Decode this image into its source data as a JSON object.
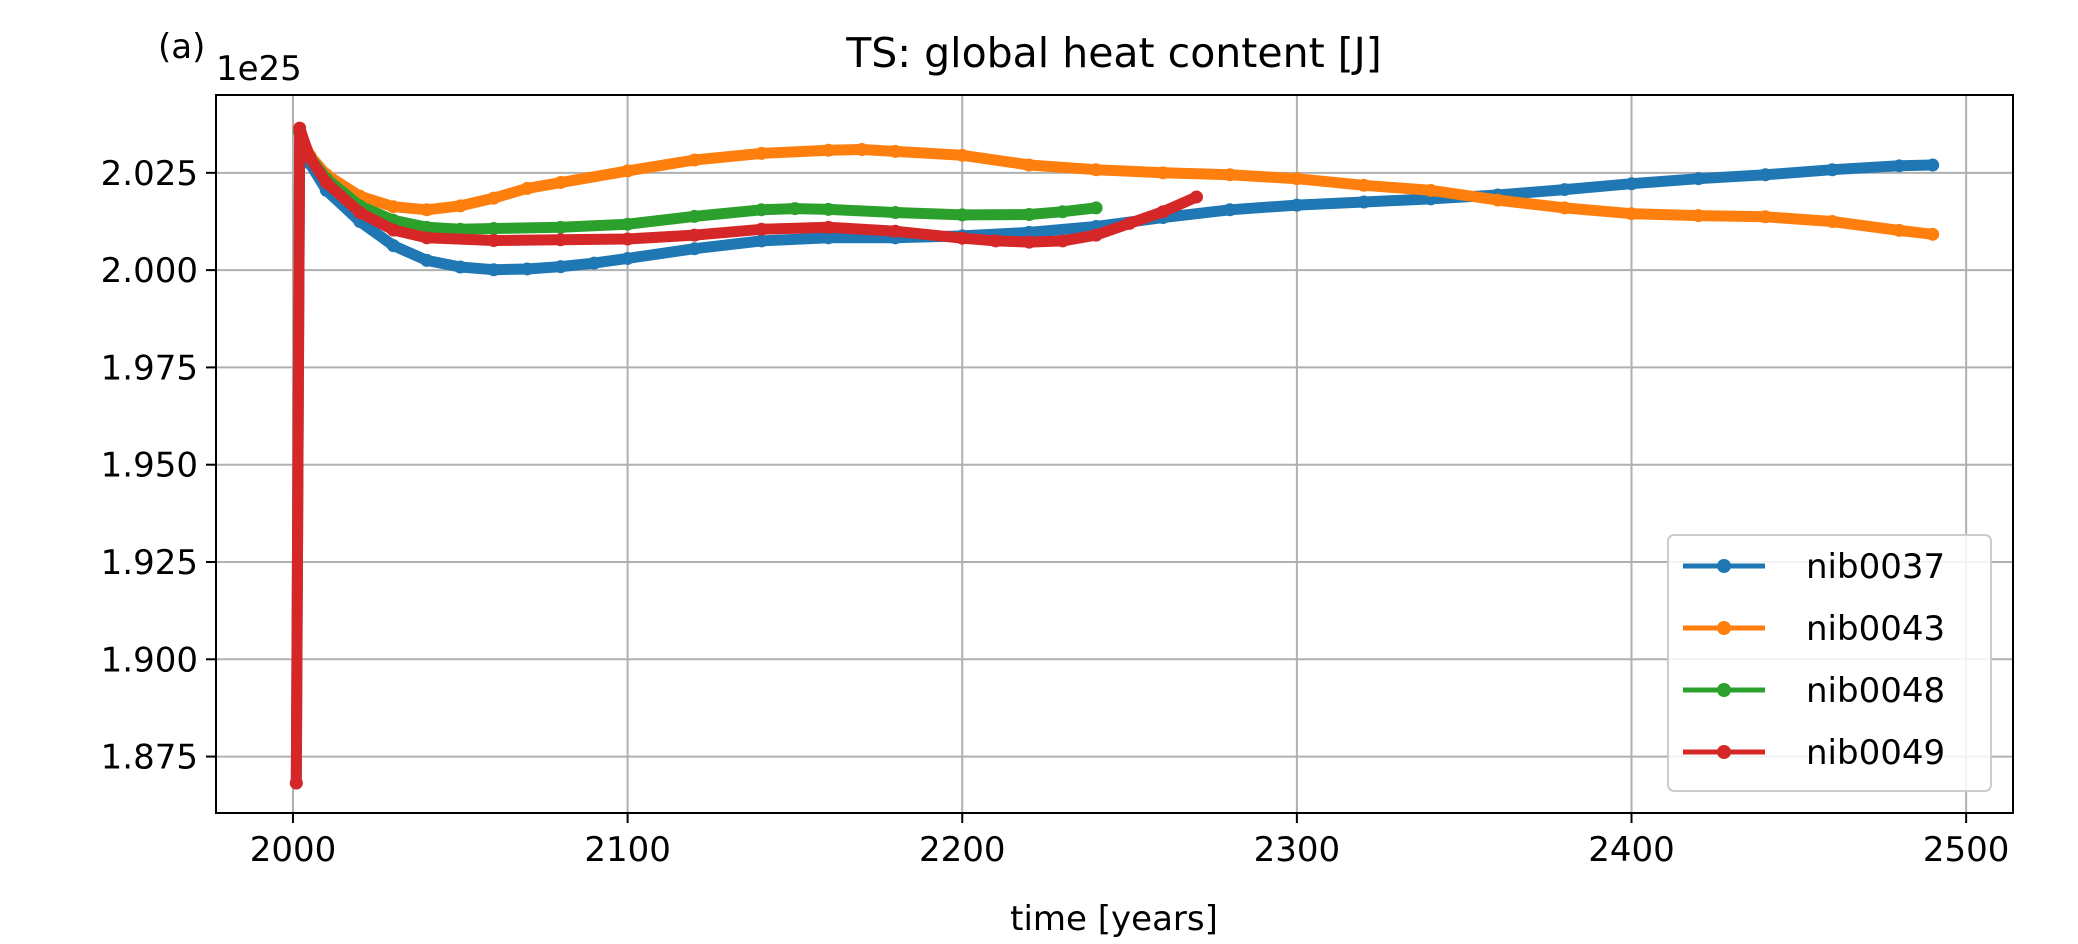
{
  "panel_label": "(a)",
  "chart_data": {
    "type": "line",
    "title": "TS: global heat content [J]",
    "xlabel": "time [years]",
    "ylabel": "",
    "offset_label": "1e25",
    "xlim": [
      1977,
      2514
    ],
    "ylim": [
      1.8605,
      2.045
    ],
    "xticks": [
      2000,
      2100,
      2200,
      2300,
      2400,
      2500
    ],
    "xtick_labels": [
      "2000",
      "2100",
      "2200",
      "2300",
      "2400",
      "2500"
    ],
    "yticks": [
      1.875,
      1.9,
      1.925,
      1.95,
      1.975,
      2.0,
      2.025
    ],
    "ytick_labels": [
      "1.875",
      "1.900",
      "1.925",
      "1.950",
      "1.975",
      "2.000",
      "2.025"
    ],
    "grid": true,
    "legend_position": "lower-right",
    "series": [
      {
        "name": "nib0037",
        "color": "#1f77b4",
        "x": [
          2001,
          2002,
          2005,
          2010,
          2020,
          2030,
          2040,
          2050,
          2060,
          2070,
          2080,
          2090,
          2100,
          2120,
          2140,
          2160,
          2180,
          2200,
          2220,
          2240,
          2260,
          2280,
          2300,
          2320,
          2340,
          2360,
          2380,
          2400,
          2420,
          2440,
          2460,
          2480,
          2490
        ],
        "y": [
          1.8682,
          2.0355,
          2.0275,
          2.0205,
          2.0125,
          2.0063,
          2.0025,
          2.0008,
          2.0001,
          2.0003,
          2.0009,
          2.0018,
          2.003,
          2.0055,
          2.0075,
          2.0083,
          2.0083,
          2.0088,
          2.0097,
          2.0112,
          2.0135,
          2.0155,
          2.0167,
          2.0175,
          2.0183,
          2.0193,
          2.0207,
          2.0222,
          2.0235,
          2.0245,
          2.0258,
          2.0268,
          2.027
        ]
      },
      {
        "name": "nib0043",
        "color": "#ff7f0e",
        "x": [
          2002,
          2005,
          2010,
          2020,
          2030,
          2040,
          2050,
          2060,
          2070,
          2080,
          2100,
          2120,
          2140,
          2160,
          2170,
          2180,
          2200,
          2220,
          2240,
          2260,
          2280,
          2300,
          2320,
          2340,
          2360,
          2380,
          2400,
          2420,
          2440,
          2460,
          2480,
          2490
        ],
        "y": [
          2.0355,
          2.0295,
          2.0245,
          2.019,
          2.0163,
          2.0155,
          2.0165,
          2.0185,
          2.021,
          2.0225,
          2.0255,
          2.0283,
          2.03,
          2.0308,
          2.031,
          2.0305,
          2.0295,
          2.027,
          2.0258,
          2.025,
          2.0245,
          2.0235,
          2.0218,
          2.0205,
          2.018,
          2.016,
          2.0145,
          2.014,
          2.0137,
          2.0125,
          2.0102,
          2.0092
        ]
      },
      {
        "name": "nib0048",
        "color": "#2ca02c",
        "x": [
          2002,
          2005,
          2010,
          2020,
          2030,
          2040,
          2050,
          2060,
          2080,
          2100,
          2120,
          2140,
          2150,
          2160,
          2180,
          2200,
          2220,
          2230,
          2240
        ],
        "y": [
          2.0355,
          2.029,
          2.0235,
          2.0165,
          2.0128,
          2.011,
          2.0105,
          2.0107,
          2.011,
          2.0118,
          2.0138,
          2.0155,
          2.0158,
          2.0156,
          2.0148,
          2.0142,
          2.0143,
          2.015,
          2.016
        ]
      },
      {
        "name": "nib0049",
        "color": "#d62728",
        "x": [
          2001,
          2002,
          2005,
          2010,
          2020,
          2030,
          2040,
          2060,
          2080,
          2100,
          2120,
          2140,
          2160,
          2180,
          2200,
          2210,
          2220,
          2230,
          2240,
          2250,
          2260,
          2270
        ],
        "y": [
          1.8682,
          2.0365,
          2.029,
          2.0225,
          2.0148,
          2.0103,
          2.0083,
          2.0076,
          2.0078,
          2.008,
          2.009,
          2.0105,
          2.011,
          2.01,
          2.0082,
          2.0075,
          2.0072,
          2.0075,
          2.009,
          2.012,
          2.015,
          2.0188
        ]
      }
    ]
  }
}
